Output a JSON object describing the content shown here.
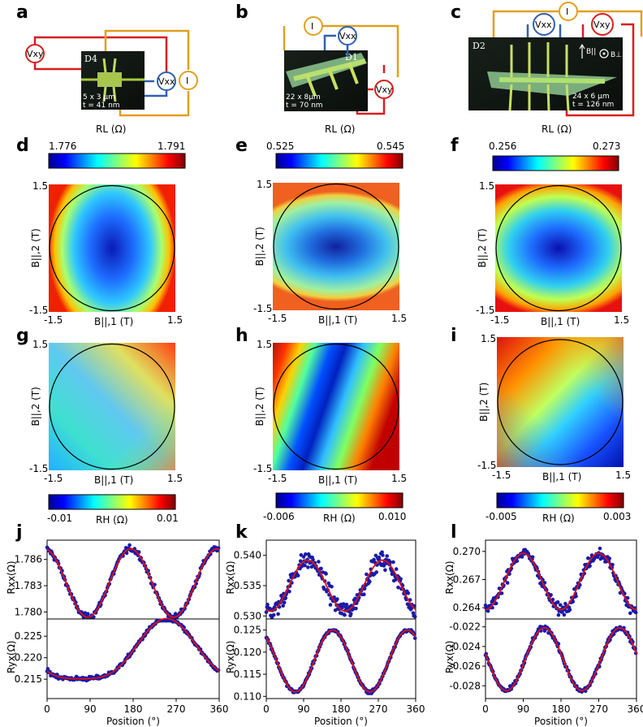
{
  "panel_letters": [
    "a",
    "b",
    "c",
    "d",
    "e",
    "f",
    "g",
    "h",
    "i",
    "j",
    "k",
    "l"
  ],
  "devices": [
    {
      "id": "a",
      "name": "D4",
      "dims": "5 x 3 µm",
      "thick": "t = 41 nm",
      "meters": [
        "Vxy",
        "Vxx",
        "I"
      ]
    },
    {
      "id": "b",
      "name": "D1",
      "dims": "22 x 8µm",
      "thick": "t = 70 nm",
      "meters": [
        "I",
        "Vxx",
        "Vxy"
      ]
    },
    {
      "id": "c",
      "name": "D2",
      "dims": "24 x 6 µm",
      "thick": "t = 126 nm",
      "meters": [
        "I",
        "Vxx",
        "Vxy"
      ],
      "field_labels": [
        "B||",
        "B⊥"
      ]
    }
  ],
  "maps": {
    "xlabel": "B||,1 (T)",
    "ylabel": "B||,2 (T)",
    "tick_lo": "-1.5",
    "tick_hi": "1.5",
    "rl_label": "RL (Ω)",
    "rh_label": "RH (Ω)",
    "rl_colorbars": [
      {
        "min": "1.776",
        "max": "1.791"
      },
      {
        "min": "0.525",
        "max": "0.545"
      },
      {
        "min": "0.256",
        "max": "0.273"
      }
    ],
    "rh_colorbars": [
      {
        "min": "-0.01",
        "max": "0.01"
      },
      {
        "min": "-0.006",
        "max": "0.010"
      },
      {
        "min": "-0.005",
        "max": "0.003"
      }
    ]
  },
  "colors": {
    "dots": "#1a1aa8",
    "fit": "#e01010",
    "wire_red": "#d81e1e",
    "wire_orange": "#e0a020",
    "wire_blue": "#3060b0"
  },
  "chart_data": [
    {
      "panel": "j",
      "type": "scatter",
      "xlabel": "Position (°)",
      "xlim": [
        0,
        360
      ],
      "x_ticks": [
        "0",
        "90",
        "180",
        "270",
        "360"
      ],
      "top": {
        "ylabel": "Rxx(Ω)",
        "yticks": [
          "1.780",
          "1.783",
          "1.786"
        ],
        "ylim": [
          1.7792,
          1.7882
        ],
        "mean": 1.7833,
        "amp": 0.0039,
        "phase": -5,
        "period": 180,
        "noise": 0.0003
      },
      "bottom": {
        "ylabel": "Ryx(Ω)",
        "yticks": [
          "0.215",
          "0.220",
          "0.225"
        ],
        "ylim": [
          0.2105,
          0.229
        ],
        "mean": 0.2205,
        "amp": 0.007,
        "phase": -110,
        "period": 360,
        "harm2": 0.0016,
        "noise": 0.0004
      }
    },
    {
      "panel": "k",
      "type": "scatter",
      "xlabel": "Position (°)",
      "xlim": [
        0,
        360
      ],
      "x_ticks": [
        "0",
        "90",
        "180",
        "270",
        "360"
      ],
      "top": {
        "ylabel": "Rxx(Ω)",
        "yticks": [
          "0.530",
          "0.535",
          "0.540"
        ],
        "ylim": [
          0.5295,
          0.5425
        ],
        "mean": 0.535,
        "amp": 0.0042,
        "phase": 100,
        "period": 180,
        "noise": 0.0012
      },
      "bottom": {
        "ylabel": "Ryx(Ω)",
        "yticks": [
          "0.110",
          "0.115",
          "0.120",
          "0.125"
        ],
        "ylim": [
          0.1095,
          0.1275
        ],
        "mean": 0.118,
        "amp": 0.007,
        "phase": 160,
        "period": 180,
        "noise": 0.0003
      }
    },
    {
      "panel": "l",
      "type": "scatter",
      "xlabel": "Position (°)",
      "xlim": [
        0,
        360
      ],
      "x_ticks": [
        "0",
        "90",
        "180",
        "270",
        "360"
      ],
      "top": {
        "ylabel": "Rxx(Ω)",
        "yticks": [
          "0.264",
          "0.267",
          "0.270"
        ],
        "ylim": [
          0.2628,
          0.2712
        ],
        "mean": 0.2668,
        "amp": 0.003,
        "phase": 90,
        "period": 180,
        "noise": 0.0005
      },
      "bottom": {
        "ylabel": "Ryx(Ω)",
        "yticks": [
          "-0.028",
          "-0.026",
          "-0.024",
          "-0.022"
        ],
        "ylim": [
          -0.0293,
          -0.0212
        ],
        "mean": -0.0253,
        "amp": 0.0032,
        "phase": 140,
        "period": 180,
        "noise": 0.0002
      }
    }
  ]
}
